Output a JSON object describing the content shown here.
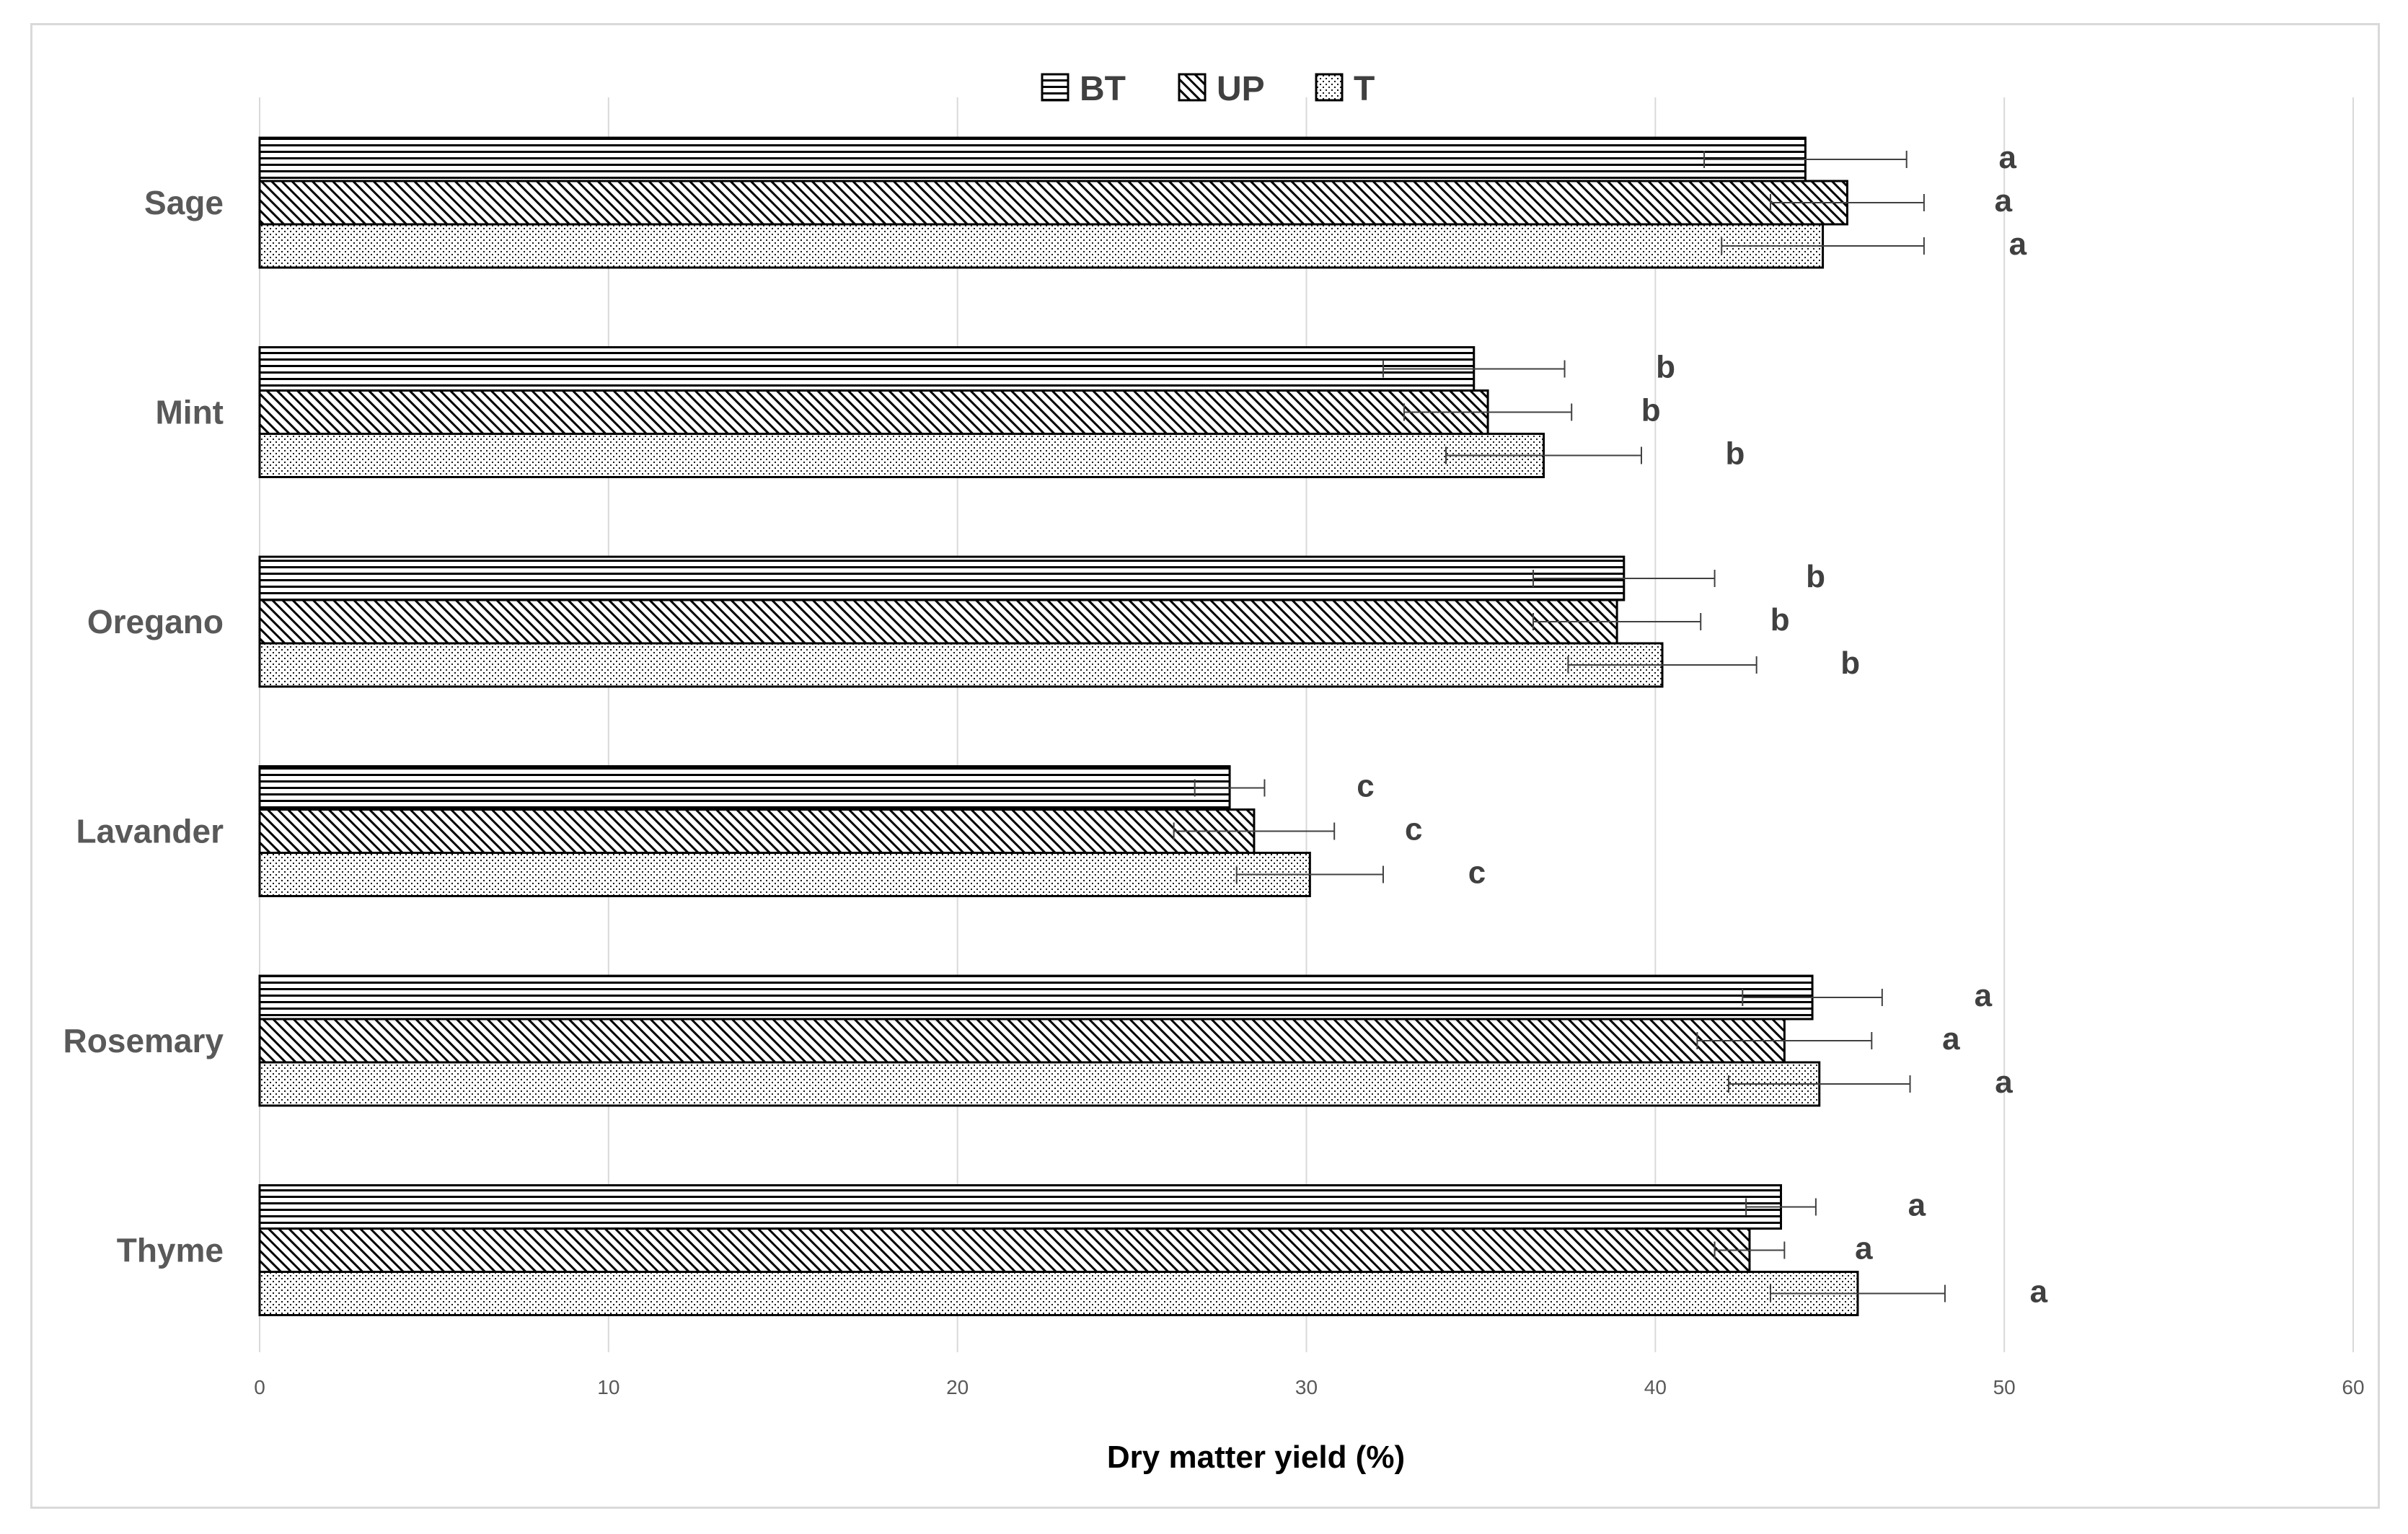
{
  "chart_data": {
    "type": "bar",
    "orientation": "horizontal",
    "categories": [
      "Sage",
      "Mint",
      "Oregano",
      "Lavander",
      "Rosemary",
      "Thyme"
    ],
    "series": [
      {
        "name": "BT",
        "pattern": "horizontal-lines",
        "values": [
          44.3,
          34.8,
          39.1,
          27.8,
          44.5,
          43.6
        ],
        "errors": [
          2.9,
          2.6,
          2.6,
          1.0,
          2.0,
          1.0
        ],
        "labels": [
          "a",
          "b",
          "b",
          "c",
          "a",
          "a"
        ]
      },
      {
        "name": "UP",
        "pattern": "diagonal-hatch",
        "values": [
          45.5,
          35.2,
          38.9,
          28.5,
          43.7,
          42.7
        ],
        "errors": [
          2.2,
          2.4,
          2.4,
          2.3,
          2.5,
          1.0
        ],
        "labels": [
          "a",
          "b",
          "b",
          "c",
          "a",
          "a"
        ]
      },
      {
        "name": "T",
        "pattern": "dots",
        "values": [
          44.8,
          36.8,
          40.2,
          30.1,
          44.7,
          45.8
        ],
        "errors": [
          2.9,
          2.8,
          2.7,
          2.1,
          2.6,
          2.5
        ],
        "labels": [
          "a",
          "b",
          "b",
          "c",
          "a",
          "a"
        ]
      }
    ],
    "xlabel": "Dry matter yield (%)",
    "xlim": [
      0,
      60
    ],
    "xticks": [
      "0",
      "10",
      "20",
      "30",
      "40",
      "50",
      "60"
    ],
    "grid": "vertical",
    "legend_position": "top"
  }
}
